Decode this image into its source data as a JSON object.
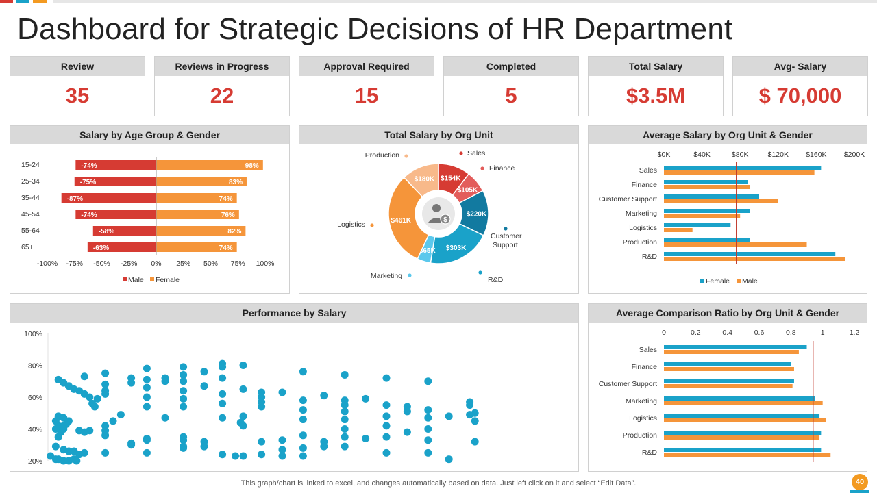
{
  "title": "Dashboard for Strategic Decisions of HR Department",
  "colors": {
    "red": "#d63b33",
    "orange": "#f5953a",
    "blue": "#1aa2c9",
    "darkblue": "#127aa0",
    "teal": "#0d6e92",
    "light": "#d9d9d9",
    "accentline": "#c0392b"
  },
  "kpis": [
    {
      "label": "Review",
      "value": "35"
    },
    {
      "label": "Reviews in Progress",
      "value": "22"
    },
    {
      "label": "Approval Required",
      "value": "15"
    },
    {
      "label": "Completed",
      "value": "5"
    },
    {
      "label": "Total Salary",
      "value": "$3.5M"
    },
    {
      "label": "Avg- Salary",
      "value": "$ 70,000"
    }
  ],
  "panels": {
    "age": "Salary by Age Group & Gender",
    "org": "Total Salary by Org Unit",
    "avg": "Average Salary by Org Unit & Gender",
    "perf": "Performance by Salary",
    "ratio": "Average Comparison Ratio by Org Unit & Gender"
  },
  "footer": "This graph/chart is linked to excel,  and changes automatically based on data. Just left click on it and select “Edit Data”.",
  "page_number": "40",
  "chart_data": [
    {
      "id": "age",
      "type": "bar",
      "orientation": "horizontal-diverging",
      "title": "Salary by Age Group & Gender",
      "categories": [
        "15-24",
        "25-34",
        "35-44",
        "45-54",
        "55-64",
        "65+"
      ],
      "series": [
        {
          "name": "Male",
          "values": [
            -74,
            -75,
            -87,
            -74,
            -58,
            -63
          ],
          "labels": [
            "-74%",
            "-75%",
            "-87%",
            "-74%",
            "-58%",
            "-63%"
          ]
        },
        {
          "name": "Female",
          "values": [
            98,
            83,
            74,
            76,
            82,
            74
          ],
          "labels": [
            "98%",
            "83%",
            "74%",
            "76%",
            "82%",
            "74%"
          ]
        }
      ],
      "xticks": [
        "-100%",
        "-75%",
        "-50%",
        "-25%",
        "0%",
        "25%",
        "50%",
        "75%",
        "100%"
      ],
      "xlim": [
        -100,
        100
      ],
      "legend": [
        "Male",
        "Female"
      ]
    },
    {
      "id": "org",
      "type": "pie",
      "variant": "donut",
      "title": "Total Salary by Org Unit",
      "slices": [
        {
          "name": "Sales",
          "value": 154,
          "label": "$154K"
        },
        {
          "name": "Finance",
          "value": 105,
          "label": "$105K"
        },
        {
          "name": "Customer Support",
          "value": 220,
          "label": "$220K"
        },
        {
          "name": "R&D",
          "value": 303,
          "label": "$303K"
        },
        {
          "name": "Marketing",
          "value": 65,
          "label": "$65K"
        },
        {
          "name": "Logistics",
          "value": 461,
          "label": "$461K"
        },
        {
          "name": "Production",
          "value": 180,
          "label": "$180K"
        }
      ],
      "outer_labels": [
        "Sales",
        "Finance",
        "Customer",
        "Support",
        "R&D",
        "Marketing",
        "Logistics",
        "Production"
      ]
    },
    {
      "id": "avg",
      "type": "bar",
      "orientation": "horizontal",
      "title": "Average Salary by Org Unit & Gender",
      "categories": [
        "Sales",
        "Finance",
        "Customer Support",
        "Marketing",
        "Logistics",
        "Production",
        "R&D"
      ],
      "series": [
        {
          "name": "Female",
          "values": [
            165,
            88,
            100,
            90,
            70,
            90,
            180
          ]
        },
        {
          "name": "Male",
          "values": [
            158,
            90,
            120,
            80,
            30,
            150,
            190
          ]
        }
      ],
      "xticks": [
        "$0K",
        "$40K",
        "$80K",
        "$120K",
        "$160K",
        "$200K"
      ],
      "xlim": [
        0,
        200
      ],
      "reference_line": 76,
      "legend": [
        "Female",
        "Male"
      ]
    },
    {
      "id": "perf",
      "type": "scatter",
      "title": "Performance by Salary",
      "yticks": [
        "100%",
        "80%",
        "60%",
        "40%",
        "20%"
      ],
      "ylim": [
        20,
        100
      ],
      "xlim": [
        0,
        100
      ],
      "points": [
        {
          "x": 0.5,
          "y": 23
        },
        {
          "x": 1.5,
          "y": 21
        },
        {
          "x": 2,
          "y": 21
        },
        {
          "x": 3,
          "y": 20
        },
        {
          "x": 4,
          "y": 20
        },
        {
          "x": 5,
          "y": 21
        },
        {
          "x": 5.5,
          "y": 20
        },
        {
          "x": 6,
          "y": 24
        },
        {
          "x": 7,
          "y": 25
        },
        {
          "x": 3,
          "y": 27
        },
        {
          "x": 4,
          "y": 26
        },
        {
          "x": 5,
          "y": 26
        },
        {
          "x": 1.5,
          "y": 29
        },
        {
          "x": 2,
          "y": 35
        },
        {
          "x": 2.5,
          "y": 38
        },
        {
          "x": 3,
          "y": 42
        },
        {
          "x": 1.5,
          "y": 40
        },
        {
          "x": 1.5,
          "y": 45
        },
        {
          "x": 2,
          "y": 48
        },
        {
          "x": 3,
          "y": 47
        },
        {
          "x": 3.5,
          "y": 43
        },
        {
          "x": 4,
          "y": 45
        },
        {
          "x": 2,
          "y": 42
        },
        {
          "x": 3,
          "y": 40
        },
        {
          "x": 2,
          "y": 71
        },
        {
          "x": 3,
          "y": 69
        },
        {
          "x": 4,
          "y": 67
        },
        {
          "x": 5,
          "y": 65
        },
        {
          "x": 6,
          "y": 64
        },
        {
          "x": 7,
          "y": 62
        },
        {
          "x": 8,
          "y": 60
        },
        {
          "x": 8.5,
          "y": 56
        },
        {
          "x": 9,
          "y": 54
        },
        {
          "x": 9.5,
          "y": 59
        },
        {
          "x": 7,
          "y": 73
        },
        {
          "x": 7,
          "y": 38
        },
        {
          "x": 8,
          "y": 39
        },
        {
          "x": 6,
          "y": 39
        },
        {
          "x": 11,
          "y": 75
        },
        {
          "x": 11,
          "y": 68
        },
        {
          "x": 11,
          "y": 64
        },
        {
          "x": 11,
          "y": 62
        },
        {
          "x": 11,
          "y": 42
        },
        {
          "x": 11,
          "y": 39
        },
        {
          "x": 11,
          "y": 36
        },
        {
          "x": 11,
          "y": 25
        },
        {
          "x": 12.5,
          "y": 45
        },
        {
          "x": 14,
          "y": 49
        },
        {
          "x": 16,
          "y": 72
        },
        {
          "x": 16,
          "y": 69
        },
        {
          "x": 16,
          "y": 31
        },
        {
          "x": 16,
          "y": 30
        },
        {
          "x": 19,
          "y": 78
        },
        {
          "x": 19,
          "y": 71
        },
        {
          "x": 19,
          "y": 66
        },
        {
          "x": 19,
          "y": 60
        },
        {
          "x": 19,
          "y": 54
        },
        {
          "x": 19,
          "y": 34
        },
        {
          "x": 19,
          "y": 33
        },
        {
          "x": 19,
          "y": 25
        },
        {
          "x": 22.5,
          "y": 72
        },
        {
          "x": 22.5,
          "y": 70
        },
        {
          "x": 22.5,
          "y": 47
        },
        {
          "x": 26,
          "y": 79
        },
        {
          "x": 26,
          "y": 74
        },
        {
          "x": 26,
          "y": 70
        },
        {
          "x": 26,
          "y": 64
        },
        {
          "x": 26,
          "y": 59
        },
        {
          "x": 26,
          "y": 54
        },
        {
          "x": 26,
          "y": 35
        },
        {
          "x": 26,
          "y": 33
        },
        {
          "x": 26,
          "y": 29
        },
        {
          "x": 26,
          "y": 28
        },
        {
          "x": 30,
          "y": 76
        },
        {
          "x": 30,
          "y": 67
        },
        {
          "x": 30,
          "y": 32
        },
        {
          "x": 30,
          "y": 29
        },
        {
          "x": 33.5,
          "y": 81
        },
        {
          "x": 33.5,
          "y": 79
        },
        {
          "x": 33.5,
          "y": 72
        },
        {
          "x": 33.5,
          "y": 62
        },
        {
          "x": 33.5,
          "y": 56
        },
        {
          "x": 33.5,
          "y": 47
        },
        {
          "x": 33.5,
          "y": 24
        },
        {
          "x": 36,
          "y": 23
        },
        {
          "x": 37.5,
          "y": 80
        },
        {
          "x": 37.5,
          "y": 65
        },
        {
          "x": 37.5,
          "y": 48
        },
        {
          "x": 37,
          "y": 44
        },
        {
          "x": 37.5,
          "y": 42
        },
        {
          "x": 37.5,
          "y": 23
        },
        {
          "x": 41,
          "y": 60
        },
        {
          "x": 41,
          "y": 57
        },
        {
          "x": 41,
          "y": 54
        },
        {
          "x": 41,
          "y": 63
        },
        {
          "x": 41,
          "y": 32
        },
        {
          "x": 41,
          "y": 24
        },
        {
          "x": 45,
          "y": 63
        },
        {
          "x": 45,
          "y": 33
        },
        {
          "x": 45,
          "y": 27
        },
        {
          "x": 45,
          "y": 23
        },
        {
          "x": 49,
          "y": 76
        },
        {
          "x": 49,
          "y": 58
        },
        {
          "x": 49,
          "y": 52
        },
        {
          "x": 49,
          "y": 46
        },
        {
          "x": 49,
          "y": 36
        },
        {
          "x": 49,
          "y": 28
        },
        {
          "x": 49,
          "y": 23
        },
        {
          "x": 53,
          "y": 61
        },
        {
          "x": 53,
          "y": 32
        },
        {
          "x": 53,
          "y": 29
        },
        {
          "x": 57,
          "y": 74
        },
        {
          "x": 57,
          "y": 58
        },
        {
          "x": 57,
          "y": 55
        },
        {
          "x": 57,
          "y": 51
        },
        {
          "x": 57,
          "y": 46
        },
        {
          "x": 57,
          "y": 40
        },
        {
          "x": 57,
          "y": 35
        },
        {
          "x": 57,
          "y": 29
        },
        {
          "x": 61,
          "y": 59
        },
        {
          "x": 61,
          "y": 34
        },
        {
          "x": 65,
          "y": 72
        },
        {
          "x": 65,
          "y": 55
        },
        {
          "x": 65,
          "y": 48
        },
        {
          "x": 65,
          "y": 42
        },
        {
          "x": 65,
          "y": 35
        },
        {
          "x": 65,
          "y": 25
        },
        {
          "x": 69,
          "y": 54
        },
        {
          "x": 69,
          "y": 51
        },
        {
          "x": 69,
          "y": 38
        },
        {
          "x": 73,
          "y": 70
        },
        {
          "x": 73,
          "y": 52
        },
        {
          "x": 73,
          "y": 47
        },
        {
          "x": 73,
          "y": 40
        },
        {
          "x": 73,
          "y": 33
        },
        {
          "x": 73,
          "y": 25
        },
        {
          "x": 77,
          "y": 48
        },
        {
          "x": 77,
          "y": 21
        },
        {
          "x": 81,
          "y": 57
        },
        {
          "x": 81,
          "y": 55
        },
        {
          "x": 82,
          "y": 50
        },
        {
          "x": 81,
          "y": 49
        },
        {
          "x": 82,
          "y": 45
        },
        {
          "x": 82,
          "y": 32
        }
      ]
    },
    {
      "id": "ratio",
      "type": "bar",
      "orientation": "horizontal",
      "title": "Average Comparison Ratio by Org Unit & Gender",
      "categories": [
        "Sales",
        "Finance",
        "Customer Support",
        "Marketing",
        "Logistics",
        "Production",
        "R&D"
      ],
      "series": [
        {
          "name": "Female",
          "values": [
            0.9,
            0.8,
            0.82,
            0.95,
            0.98,
            0.99,
            0.99
          ]
        },
        {
          "name": "Male",
          "values": [
            0.85,
            0.82,
            0.81,
            1.0,
            1.02,
            0.98,
            1.05
          ]
        }
      ],
      "xticks": [
        "0",
        "0.2",
        "0.4",
        "0.6",
        "0.8",
        "1",
        "1.2"
      ],
      "xlim": [
        0,
        1.2
      ],
      "reference_line": 0.94
    }
  ]
}
